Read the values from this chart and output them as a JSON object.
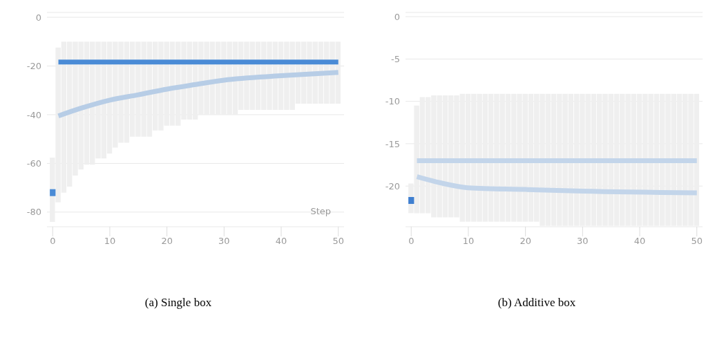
{
  "chart_data": [
    {
      "type": "bar",
      "title": "(a) Single box",
      "xlabel": "Step",
      "grid": "y",
      "xlim": [
        -1,
        51
      ],
      "xticks": [
        0,
        10,
        20,
        30,
        40,
        50
      ],
      "ylim": [
        -86,
        2
      ],
      "yticks": [
        0,
        -20,
        -40,
        -60,
        -80
      ],
      "x": [
        0,
        1,
        2,
        3,
        4,
        5,
        6,
        7,
        8,
        9,
        10,
        11,
        12,
        13,
        14,
        15,
        16,
        17,
        18,
        19,
        20,
        21,
        22,
        23,
        24,
        25,
        26,
        27,
        28,
        29,
        30,
        31,
        32,
        33,
        34,
        35,
        36,
        37,
        38,
        39,
        40,
        41,
        42,
        43,
        44,
        45,
        46,
        47,
        48,
        49,
        50
      ],
      "series": [
        {
          "color": "#efefef",
          "base": [
            -84,
            -76,
            -72,
            -69.5,
            -65,
            -62.5,
            -60.5,
            -60.5,
            -58,
            -58,
            -56,
            -53.5,
            -51.5,
            -51.5,
            -49,
            -49,
            -49,
            -49,
            -46.5,
            -46.5,
            -44.5,
            -44.5,
            -44.5,
            -42,
            -42,
            -42,
            -40,
            -40,
            -40,
            -40,
            -40,
            -40,
            -40,
            -38,
            -38,
            -38,
            -38,
            -38,
            -38,
            -38,
            -38,
            -38,
            -38,
            -35.5,
            -35.5,
            -35.5,
            -35.5,
            -35.5,
            -35.5,
            -35.5,
            -35.5
          ],
          "values": [
            26.4,
            63.6,
            62,
            59.5,
            55,
            52.5,
            50.5,
            50.5,
            48,
            48,
            46,
            43.5,
            41.5,
            41.5,
            39,
            39,
            39,
            39,
            36.5,
            36.5,
            34.5,
            34.5,
            34.5,
            32,
            32,
            32,
            30,
            30,
            30,
            30,
            30,
            30,
            30,
            28,
            28,
            28,
            28,
            28,
            28,
            28,
            28,
            28,
            28,
            25.5,
            25.5,
            25.5,
            25.5,
            25.5,
            25.5,
            25.5,
            25.5
          ]
        },
        {
          "type": "line",
          "color": "#4a8bd6",
          "x": [
            1,
            50
          ],
          "values": [
            -18.4,
            -18.4
          ]
        },
        {
          "type": "line",
          "color": "#b7cde6",
          "x": [
            1,
            5,
            10,
            15,
            20,
            25,
            30,
            40,
            50
          ],
          "values": [
            -40.5,
            -37.3,
            -34,
            -31.8,
            -29.5,
            -27.6,
            -25.8,
            -24,
            -22.6
          ]
        },
        {
          "type": "scatter",
          "color": "#4a8bd6",
          "x": [
            0
          ],
          "values": [
            -72
          ]
        }
      ]
    },
    {
      "type": "bar",
      "title": "(b) Additive box",
      "grid": "y",
      "xlim": [
        -1,
        51
      ],
      "xticks": [
        0,
        10,
        20,
        30,
        40,
        50
      ],
      "ylim": [
        -24.8,
        0.5
      ],
      "yticks": [
        0,
        -5,
        -10,
        -15,
        -20
      ],
      "x": [
        0,
        1,
        2,
        3,
        4,
        5,
        6,
        7,
        8,
        9,
        10,
        11,
        12,
        13,
        14,
        15,
        16,
        17,
        18,
        19,
        20,
        21,
        22,
        23,
        24,
        25,
        26,
        27,
        28,
        29,
        30,
        31,
        32,
        33,
        34,
        35,
        36,
        37,
        38,
        39,
        40,
        41,
        42,
        43,
        44,
        45,
        46,
        47,
        48,
        49,
        50
      ],
      "series": [
        {
          "color": "#efefef",
          "base": [
            -23.2,
            -23.2,
            -23.2,
            -23.2,
            -23.7,
            -23.7,
            -23.7,
            -23.7,
            -23.7,
            -24.2,
            -24.2,
            -24.2,
            -24.2,
            -24.2,
            -24.2,
            -24.2,
            -24.2,
            -24.2,
            -24.2,
            -24.2,
            -24.2,
            -24.2,
            -24.2,
            -24.7,
            -24.7,
            -24.7,
            -24.7,
            -24.7,
            -24.7,
            -24.7,
            -24.7,
            -24.7,
            -24.7,
            -24.7,
            -24.7,
            -24.7,
            -24.7,
            -24.7,
            -24.7,
            -24.7,
            -24.7,
            -24.7,
            -24.7,
            -24.7,
            -24.7,
            -24.7,
            -24.7,
            -24.7,
            -24.7,
            -24.7,
            -24.7
          ],
          "values": [
            3.5,
            12.7,
            13.7,
            13.7,
            14.4,
            14.4,
            14.4,
            14.4,
            14.4,
            15.1,
            15.1,
            15.1,
            15.1,
            15.1,
            15.1,
            15.1,
            15.1,
            15.1,
            15.1,
            15.1,
            15.1,
            15.1,
            15.1,
            15.6,
            15.6,
            15.6,
            15.6,
            15.6,
            15.6,
            15.6,
            15.6,
            15.6,
            15.6,
            15.6,
            15.6,
            15.6,
            15.6,
            15.6,
            15.6,
            15.6,
            15.6,
            15.6,
            15.6,
            15.6,
            15.6,
            15.6,
            15.6,
            15.6,
            15.6,
            15.6,
            15.6
          ]
        },
        {
          "type": "line",
          "color": "#c3d5ea",
          "x": [
            1,
            50
          ],
          "values": [
            -17,
            -17
          ]
        },
        {
          "type": "line",
          "color": "#c3d5ea",
          "x": [
            1,
            5,
            10,
            20,
            30,
            50
          ],
          "values": [
            -18.9,
            -19.6,
            -20.2,
            -20.4,
            -20.6,
            -20.8
          ]
        },
        {
          "type": "scatter",
          "color": "#3f7fd0",
          "x": [
            0
          ],
          "values": [
            -21.7
          ]
        }
      ]
    }
  ]
}
